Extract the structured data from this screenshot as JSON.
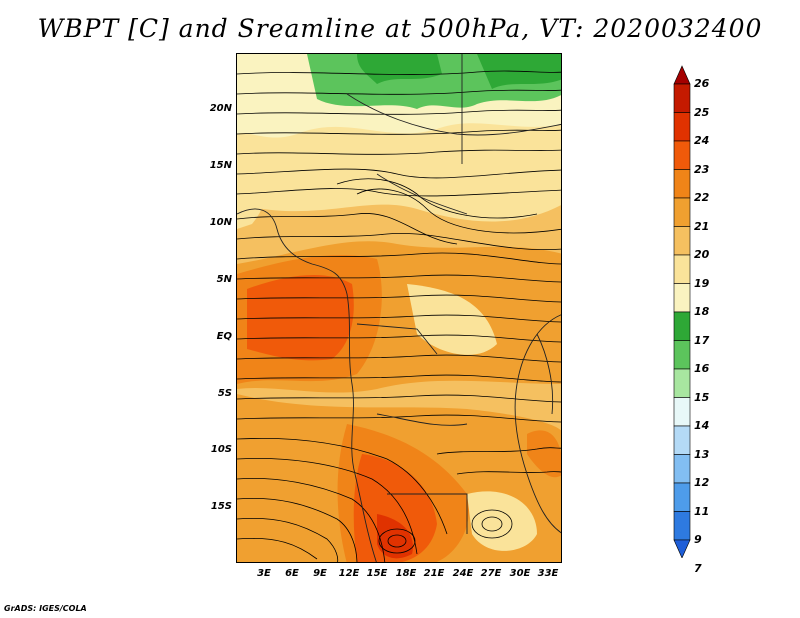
{
  "title": "WBPT [C] and Sreamline at 500hPa, VT: 2020032400",
  "credit": "GrADS: IGES/COLA",
  "map": {
    "variable": "wet-bulb potential temperature",
    "level": "500hPa",
    "lat_labels": [
      "20N",
      "15N",
      "10N",
      "5N",
      "EQ",
      "5S",
      "10S",
      "15S"
    ],
    "lon_labels": [
      "3E",
      "6E",
      "9E",
      "12E",
      "15E",
      "18E",
      "21E",
      "24E",
      "27E",
      "30E",
      "33E"
    ]
  },
  "colorbar": {
    "labels": [
      "26",
      "25",
      "24",
      "23",
      "22",
      "21",
      "20",
      "19",
      "18",
      "17",
      "16",
      "15",
      "14",
      "13",
      "12",
      "11",
      "9",
      "7"
    ],
    "colors": [
      "#a50000",
      "#c41a00",
      "#e03200",
      "#f05a0a",
      "#f08418",
      "#f0a030",
      "#f5c060",
      "#fae39a",
      "#faf3c0",
      "#2ea836",
      "#5cc45c",
      "#a8e6a0",
      "#e8f8f8",
      "#b4daf6",
      "#82bef2",
      "#4e9cea",
      "#2e7ae0",
      "#1e5ed8"
    ]
  }
}
